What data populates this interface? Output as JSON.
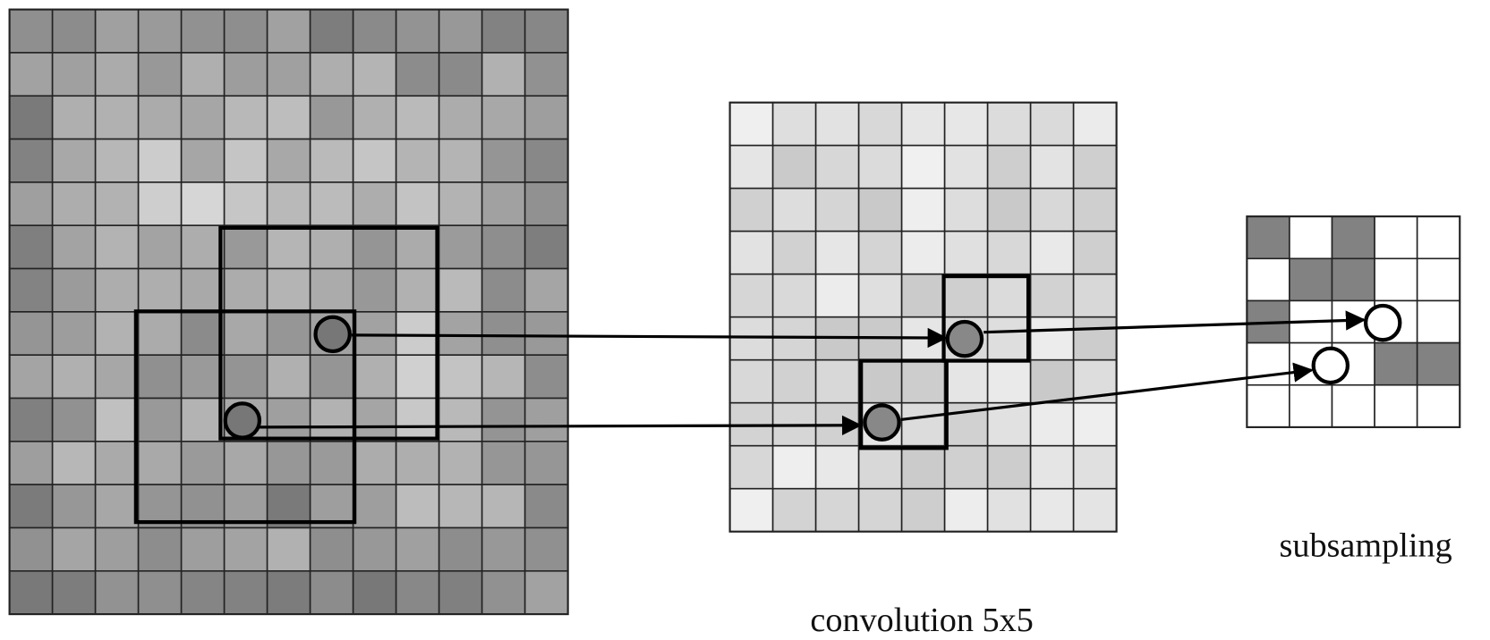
{
  "labels": {
    "convolution": "convolution 5x5",
    "subsampling": "subsampling"
  }
}
